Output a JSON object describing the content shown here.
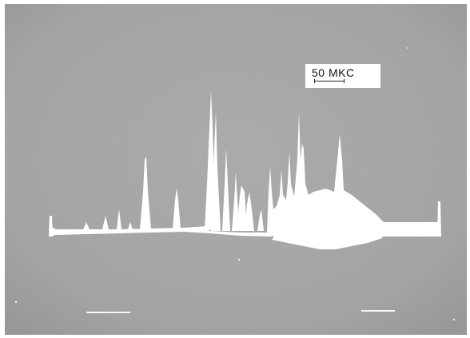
{
  "figure": {
    "scale_label": "50 MKC"
  },
  "colors": {
    "background_gray": "#a3a3a3",
    "trace_white": "#ffffff",
    "label_text": "#111111"
  }
}
